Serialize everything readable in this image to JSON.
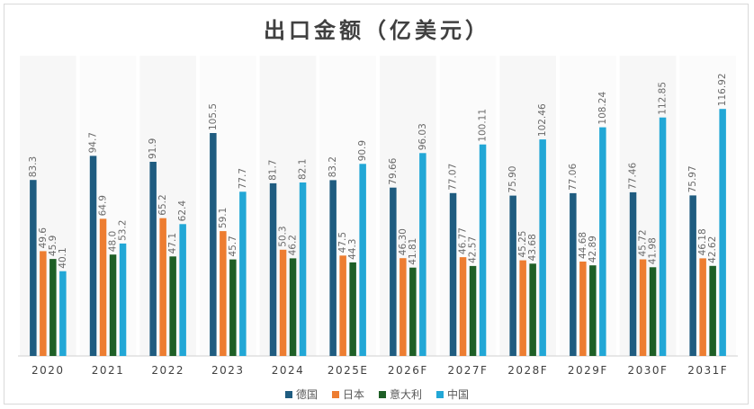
{
  "chart_data": {
    "type": "bar",
    "title": "出口金额（亿美元）",
    "categories": [
      "2020",
      "2021",
      "2022",
      "2023",
      "2024",
      "2025E",
      "2026F",
      "2027F",
      "2028F",
      "2029F",
      "2030F",
      "2031F"
    ],
    "series": [
      {
        "name": "德国",
        "color": "#1f5c80",
        "values": [
          83.3,
          94.7,
          91.9,
          105.5,
          81.7,
          83.2,
          79.66,
          77.07,
          75.9,
          77.06,
          77.46,
          75.97
        ],
        "labels": [
          "83.3",
          "94.7",
          "91.9",
          "105.5",
          "81.7",
          "83.2",
          "79.66",
          "77.07",
          "75.90",
          "77.06",
          "77.46",
          "75.97"
        ]
      },
      {
        "name": "日本",
        "color": "#ed7d31",
        "values": [
          49.6,
          64.9,
          65.2,
          59.1,
          50.3,
          47.5,
          46.3,
          46.77,
          45.25,
          44.68,
          45.72,
          46.18
        ],
        "labels": [
          "49.6",
          "64.9",
          "65.2",
          "59.1",
          "50.3",
          "47.5",
          "46.30",
          "46.77",
          "45.25",
          "44.68",
          "45.72",
          "46.18"
        ]
      },
      {
        "name": "意大利",
        "color": "#1e5f26",
        "values": [
          45.9,
          48.0,
          47.1,
          45.7,
          46.2,
          44.3,
          41.81,
          42.57,
          43.68,
          42.89,
          41.98,
          42.62
        ],
        "labels": [
          "45.9",
          "48.0",
          "47.1",
          "45.7",
          "46.2",
          "44.3",
          "41.81",
          "42.57",
          "43.68",
          "42.89",
          "41.98",
          "42.62"
        ]
      },
      {
        "name": "中国",
        "color": "#22a7d6",
        "values": [
          40.1,
          53.2,
          62.4,
          77.7,
          82.1,
          90.9,
          96.03,
          100.11,
          102.46,
          108.24,
          112.85,
          116.92
        ],
        "labels": [
          "40.1",
          "53.2",
          "62.4",
          "77.7",
          "82.1",
          "90.9",
          "96.03",
          "100.11",
          "102.46",
          "108.24",
          "112.85",
          "116.92"
        ]
      }
    ],
    "ylim": [
      0,
      130
    ],
    "legend_position": "bottom",
    "grid": false
  }
}
